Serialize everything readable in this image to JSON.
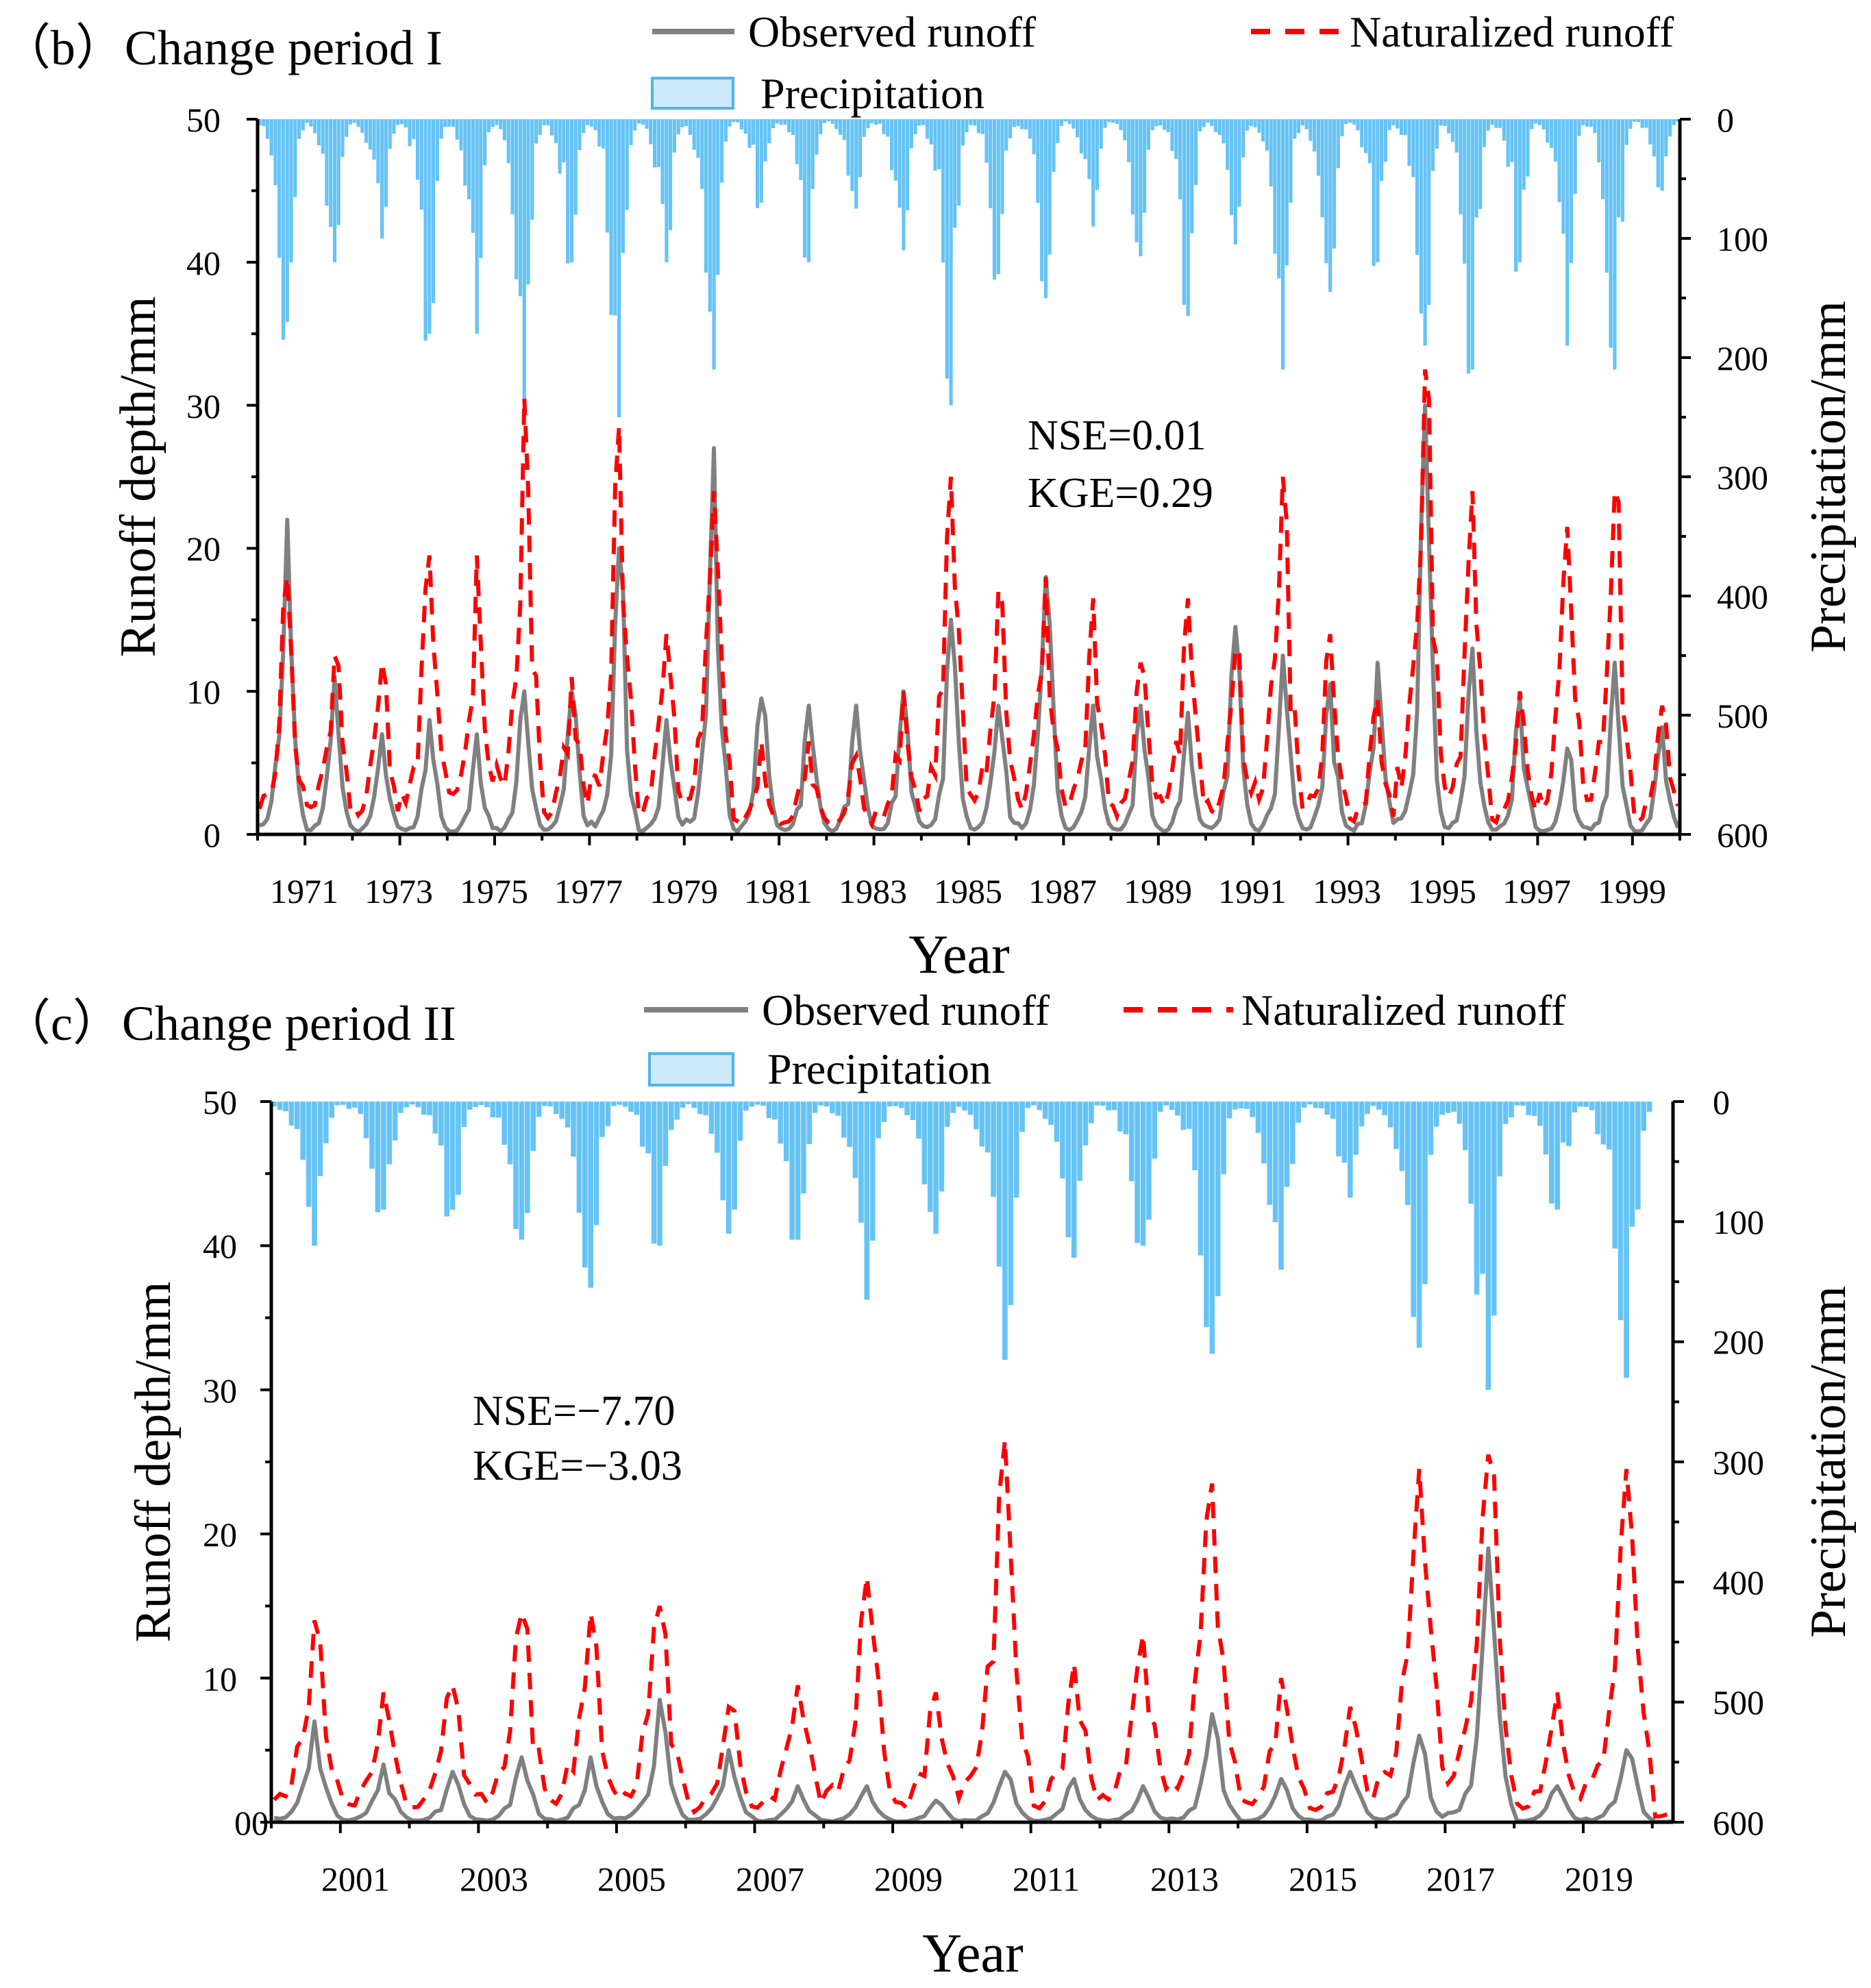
{
  "colors": {
    "observed": "#808080",
    "naturalized": "#ff0000",
    "precip_fill": "#66c3f5",
    "precip_legend_fill": "#cde9fb",
    "precip_legend_stroke": "#4fb4ea"
  },
  "chart_data": [
    {
      "type": "bar+line",
      "id": "b",
      "title": "（b）Change period I",
      "legend": [
        "Observed runoff",
        "Naturalized runoff",
        "Precipitation"
      ],
      "ylabel_left": "Runoff depth/mm",
      "ylabel_right": "Precipitation/mm",
      "xlabel": "Year",
      "ylim_left": [
        0,
        50
      ],
      "ylim_right": [
        600,
        0
      ],
      "left_ticks": [
        "0",
        "10",
        "20",
        "30",
        "40",
        "50"
      ],
      "right_ticks": [
        "0",
        "100",
        "200",
        "300",
        "400",
        "500",
        "600"
      ],
      "x_range": [
        1970,
        2000
      ],
      "x_ticks": [
        "1971",
        "1973",
        "1975",
        "1977",
        "1979",
        "1981",
        "1983",
        "1985",
        "1987",
        "1989",
        "1991",
        "1993",
        "1995",
        "1997",
        "1999"
      ],
      "metrics": {
        "nse": "NSE=0.01",
        "kge": "KGE=0.29"
      },
      "annual_peaks": {
        "years": [
          1970,
          1971,
          1972,
          1973,
          1974,
          1975,
          1976,
          1977,
          1978,
          1979,
          1980,
          1981,
          1982,
          1983,
          1984,
          1985,
          1986,
          1987,
          1988,
          1989,
          1990,
          1991,
          1992,
          1993,
          1994,
          1995,
          1996,
          1997,
          1998,
          1999
        ],
        "observed_peak_mm": [
          22,
          11,
          7,
          8,
          7,
          10,
          10,
          20,
          8,
          27,
          9.5,
          9,
          9,
          10,
          15,
          9,
          18,
          9,
          9,
          8.5,
          14.5,
          12.5,
          10.5,
          12,
          30,
          13,
          9.5,
          6,
          12,
          7.5
        ],
        "naturalized_peak_mm": [
          18,
          12.5,
          12,
          19.5,
          19.5,
          30.5,
          11,
          28.5,
          14,
          24,
          6.5,
          6.5,
          5.5,
          10,
          25,
          17,
          18,
          16.5,
          12,
          16.5,
          13,
          25,
          14,
          9.5,
          32.5,
          24,
          10,
          21.5,
          24,
          9
        ],
        "precip_peak_mm": [
          170,
          120,
          100,
          180,
          180,
          240,
          120,
          250,
          120,
          210,
          70,
          120,
          75,
          110,
          240,
          130,
          150,
          90,
          115,
          165,
          105,
          210,
          145,
          120,
          190,
          210,
          120,
          190,
          210,
          60
        ]
      }
    },
    {
      "type": "bar+line",
      "id": "c",
      "title": "（c）Change period II",
      "legend": [
        "Observed runoff",
        "Naturalized runoff",
        "Precipitation"
      ],
      "ylabel_left": "Runoff depth/mm",
      "ylabel_right": "Precipitation/mm",
      "xlabel": "Year",
      "ylim_left": [
        0,
        50
      ],
      "ylim_right": [
        600,
        0
      ],
      "left_ticks": [
        "00",
        "10",
        "20",
        "30",
        "40",
        "50"
      ],
      "right_ticks": [
        "0",
        "100",
        "200",
        "300",
        "400",
        "500",
        "600"
      ],
      "x_range": [
        2000,
        2020.3
      ],
      "x_ticks": [
        "2001",
        "2003",
        "2005",
        "2007",
        "2009",
        "2011",
        "2013",
        "2015",
        "2017",
        "2019"
      ],
      "metrics": {
        "nse": "NSE=−7.70",
        "kge": "KGE=−3.03"
      },
      "annual_peaks": {
        "years": [
          2000,
          2001,
          2002,
          2003,
          2004,
          2005,
          2006,
          2007,
          2008,
          2009,
          2010,
          2011,
          2012,
          2013,
          2014,
          2015,
          2016,
          2017,
          2018,
          2019,
          2020
        ],
        "observed_peak_mm": [
          7,
          4,
          3.5,
          4.5,
          4.5,
          8.5,
          5,
          2.5,
          2.5,
          1.5,
          3.5,
          3,
          2.5,
          7.5,
          3,
          3.5,
          6,
          19,
          2.5,
          5,
          0.5
        ],
        "naturalized_peak_mm": [
          14,
          9,
          9.5,
          14.5,
          14.5,
          15,
          8,
          9.5,
          17,
          9,
          26.5,
          11,
          13,
          23.5,
          10,
          8,
          24.5,
          25.5,
          9,
          24.5,
          3
        ],
        "precip_peak_mm": [
          120,
          90,
          90,
          115,
          155,
          120,
          110,
          115,
          165,
          110,
          215,
          130,
          120,
          210,
          140,
          80,
          205,
          240,
          90,
          230,
          0
        ]
      }
    }
  ]
}
